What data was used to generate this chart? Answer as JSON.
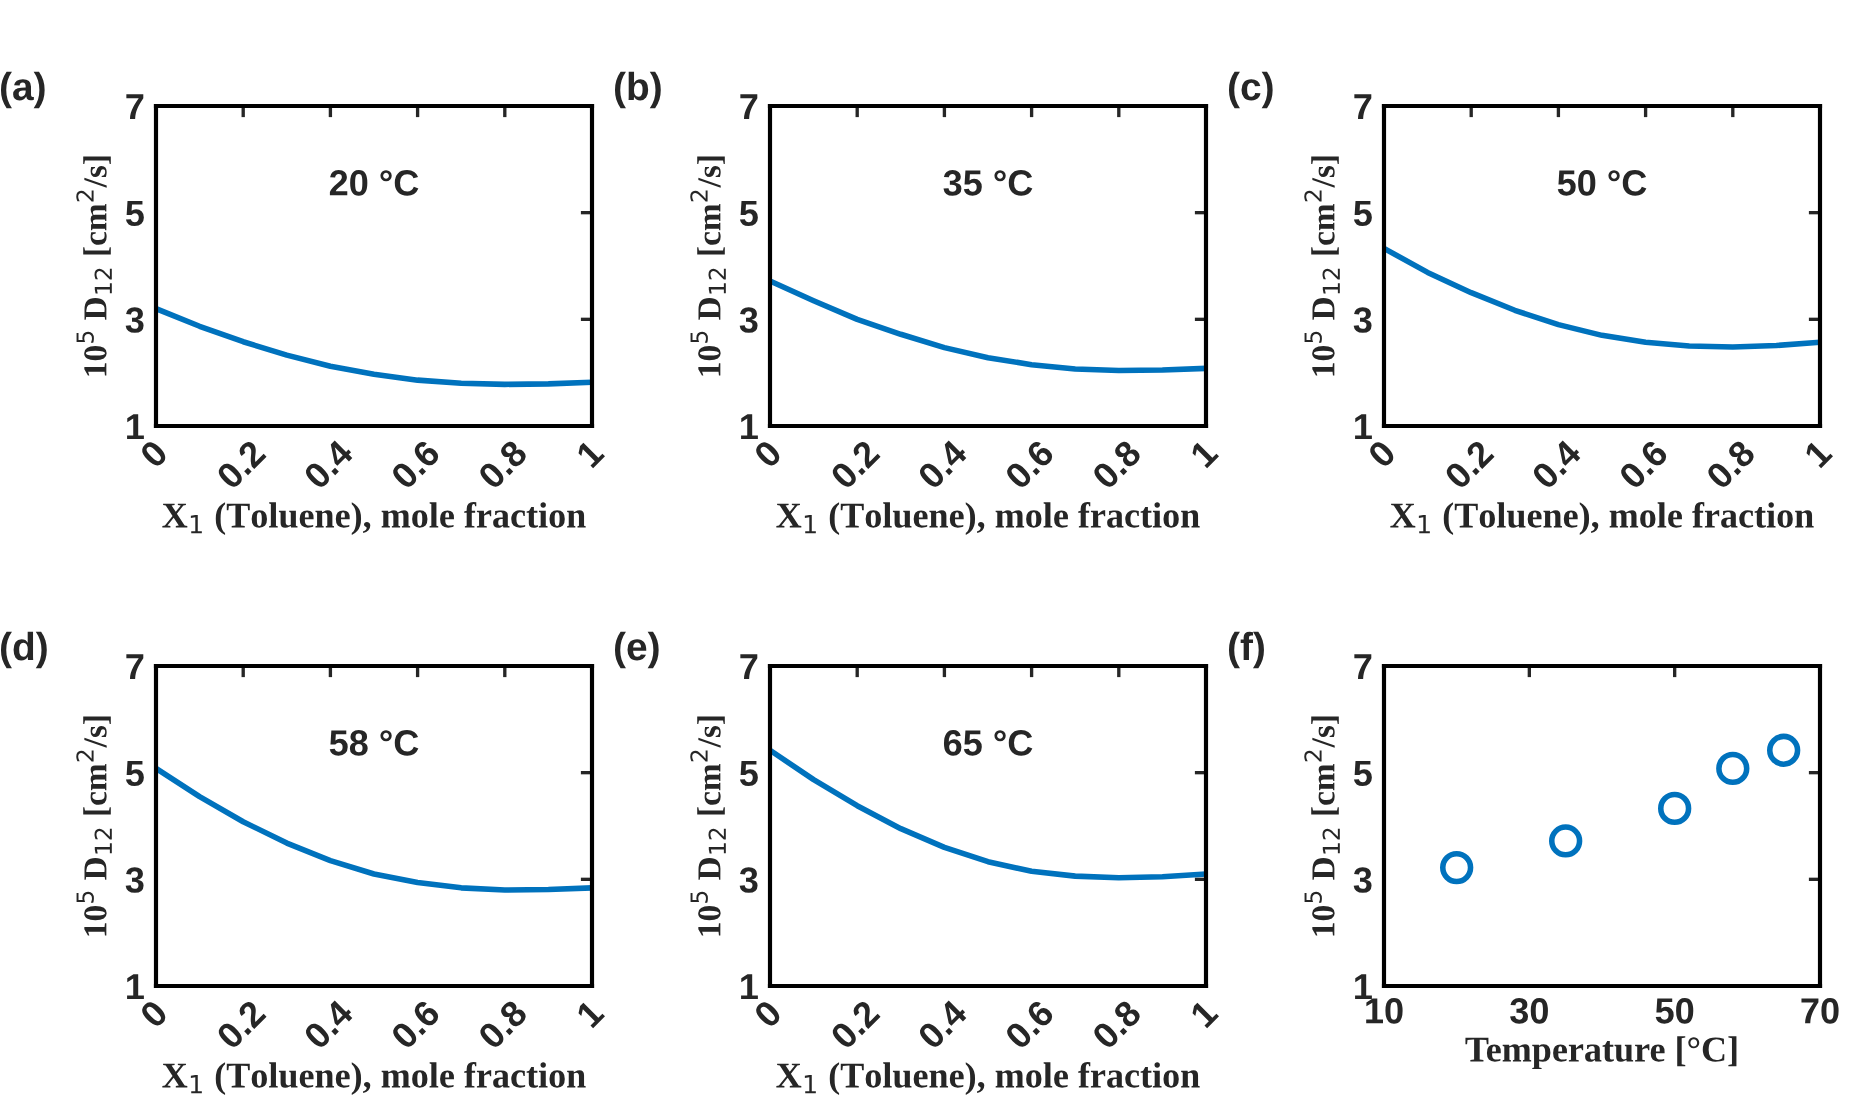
{
  "chart_data": [
    {
      "type": "line",
      "title": "20 °C",
      "annotations": [
        "(a)"
      ],
      "xlabel": "X$_{1}$ (Toluene), mole fraction",
      "ylabel": "10$^{5}$ D$_{12}$ [cm$^{2}$/s]",
      "x": [
        0,
        0.1,
        0.2,
        0.3,
        0.4,
        0.5,
        0.6,
        0.7,
        0.8,
        0.9,
        1
      ],
      "series": [
        {
          "color": "#0072bd",
          "values": [
            3.2,
            2.87,
            2.58,
            2.33,
            2.12,
            1.97,
            1.86,
            1.8,
            1.78,
            1.79,
            1.82
          ]
        }
      ],
      "xlim": [
        0,
        1
      ],
      "xticks": [
        0,
        0.2,
        0.4,
        0.6,
        0.8,
        1
      ],
      "ylim": [
        1,
        7
      ],
      "yticks": [
        1,
        3,
        5,
        7
      ],
      "grid": false,
      "legend": false,
      "marker": "none",
      "line_style": "solid"
    },
    {
      "type": "line",
      "title": "35 °C",
      "annotations": [
        "(b)"
      ],
      "xlabel": "X$_{1}$ (Toluene), mole fraction",
      "ylabel": "10$^{5}$ D$_{12}$ [cm$^{2}$/s]",
      "x": [
        0,
        0.1,
        0.2,
        0.3,
        0.4,
        0.5,
        0.6,
        0.7,
        0.8,
        0.9,
        1
      ],
      "series": [
        {
          "color": "#0072bd",
          "values": [
            3.72,
            3.35,
            3.0,
            2.72,
            2.47,
            2.28,
            2.15,
            2.07,
            2.04,
            2.05,
            2.08
          ]
        }
      ],
      "xlim": [
        0,
        1
      ],
      "xticks": [
        0,
        0.2,
        0.4,
        0.6,
        0.8,
        1
      ],
      "ylim": [
        1,
        7
      ],
      "yticks": [
        1,
        3,
        5,
        7
      ],
      "grid": false,
      "legend": false,
      "marker": "none",
      "line_style": "solid"
    },
    {
      "type": "line",
      "title": "50 °C",
      "annotations": [
        "(c)"
      ],
      "xlabel": "X$_{1}$ (Toluene), mole fraction",
      "ylabel": "10$^{5}$ D$_{12}$ [cm$^{2}$/s]",
      "x": [
        0,
        0.1,
        0.2,
        0.3,
        0.4,
        0.5,
        0.6,
        0.7,
        0.8,
        0.9,
        1
      ],
      "series": [
        {
          "color": "#0072bd",
          "values": [
            4.33,
            3.88,
            3.5,
            3.17,
            2.9,
            2.7,
            2.57,
            2.5,
            2.48,
            2.51,
            2.57
          ]
        }
      ],
      "xlim": [
        0,
        1
      ],
      "xticks": [
        0,
        0.2,
        0.4,
        0.6,
        0.8,
        1
      ],
      "ylim": [
        1,
        7
      ],
      "yticks": [
        1,
        3,
        5,
        7
      ],
      "grid": false,
      "legend": false,
      "marker": "none",
      "line_style": "solid"
    },
    {
      "type": "line",
      "title": "58 °C",
      "annotations": [
        "(d)"
      ],
      "xlabel": "X$_{1}$ (Toluene), mole fraction",
      "ylabel": "10$^{5}$ D$_{12}$ [cm$^{2}$/s]",
      "x": [
        0,
        0.1,
        0.2,
        0.3,
        0.4,
        0.5,
        0.6,
        0.7,
        0.8,
        0.9,
        1
      ],
      "series": [
        {
          "color": "#0072bd",
          "values": [
            5.08,
            4.55,
            4.08,
            3.68,
            3.35,
            3.1,
            2.94,
            2.84,
            2.8,
            2.81,
            2.84
          ]
        }
      ],
      "xlim": [
        0,
        1
      ],
      "xticks": [
        0,
        0.2,
        0.4,
        0.6,
        0.8,
        1
      ],
      "ylim": [
        1,
        7
      ],
      "yticks": [
        1,
        3,
        5,
        7
      ],
      "grid": false,
      "legend": false,
      "marker": "none",
      "line_style": "solid"
    },
    {
      "type": "line",
      "title": "65 °C",
      "annotations": [
        "(e)"
      ],
      "xlabel": "X$_{1}$ (Toluene), mole fraction",
      "ylabel": "10$^{5}$ D$_{12}$ [cm$^{2}$/s]",
      "x": [
        0,
        0.1,
        0.2,
        0.3,
        0.4,
        0.5,
        0.6,
        0.7,
        0.8,
        0.9,
        1
      ],
      "series": [
        {
          "color": "#0072bd",
          "values": [
            5.42,
            4.87,
            4.38,
            3.95,
            3.6,
            3.33,
            3.15,
            3.06,
            3.03,
            3.05,
            3.1
          ]
        }
      ],
      "xlim": [
        0,
        1
      ],
      "xticks": [
        0,
        0.2,
        0.4,
        0.6,
        0.8,
        1
      ],
      "ylim": [
        1,
        7
      ],
      "yticks": [
        1,
        3,
        5,
        7
      ],
      "grid": false,
      "legend": false,
      "marker": "none",
      "line_style": "solid"
    },
    {
      "type": "scatter",
      "annotations": [
        "(f)"
      ],
      "xlabel": "Temperature [°C]",
      "ylabel": "10$^{5}$ D$_{12}$ [cm$^{2}$/s]",
      "x": [
        20,
        35,
        50,
        58,
        65
      ],
      "series": [
        {
          "color": "#0072bd",
          "values": [
            3.22,
            3.72,
            4.33,
            5.08,
            5.42
          ]
        }
      ],
      "xlim": [
        10,
        70
      ],
      "xticks": [
        10,
        30,
        50,
        70
      ],
      "ylim": [
        1,
        7
      ],
      "yticks": [
        1,
        3,
        5,
        7
      ],
      "grid": false,
      "legend": false,
      "marker": "circle"
    }
  ]
}
